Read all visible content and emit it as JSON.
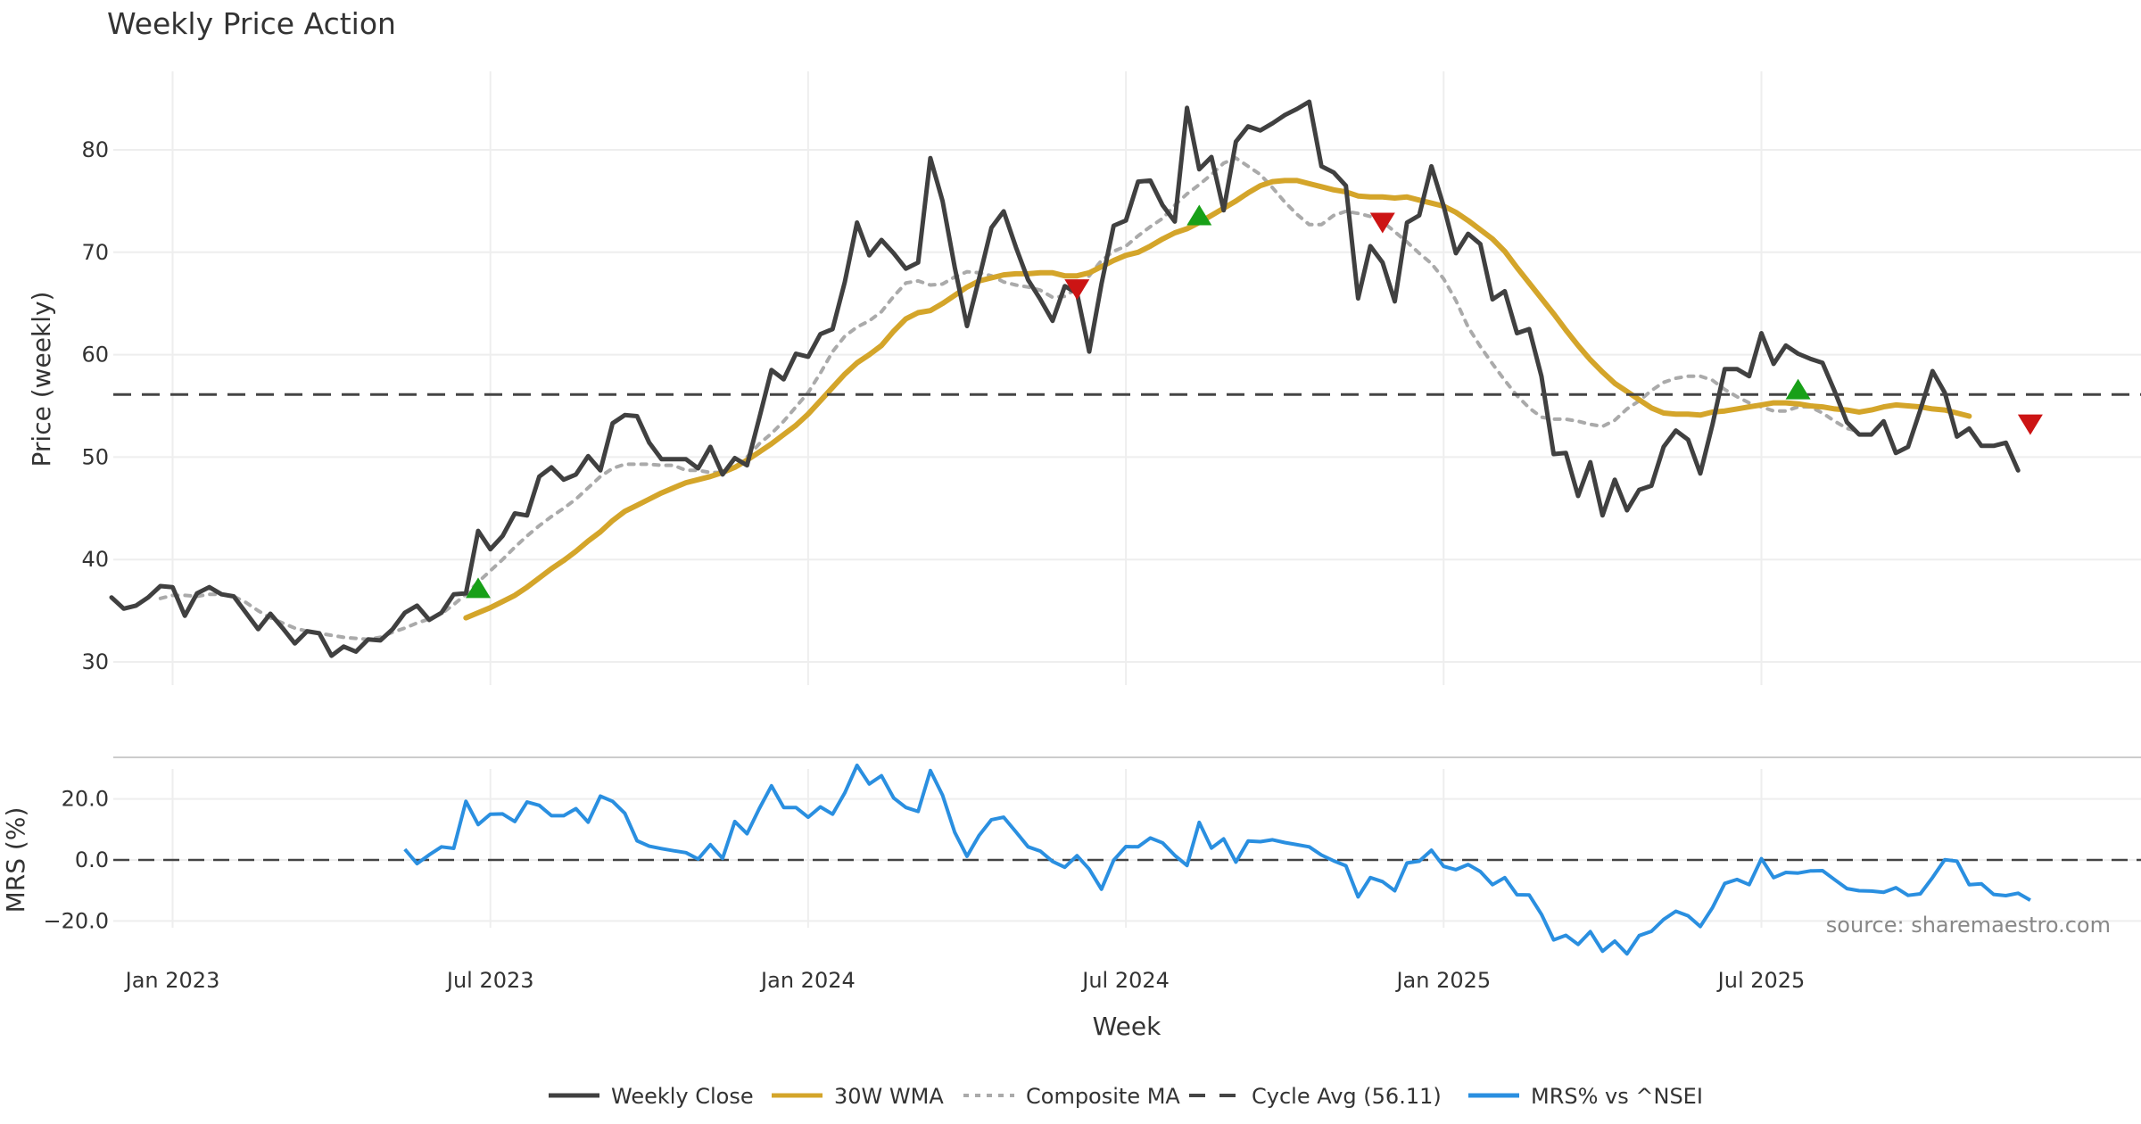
{
  "chart_data": {
    "type": "line",
    "title": "Weekly Price Action",
    "xlabel": "Week",
    "source": "source: sharemaestro.com",
    "x_ticks": [
      "Jan 2023",
      "Jul 2023",
      "Jan 2024",
      "Jul 2024",
      "Jan 2025",
      "Jul 2025"
    ],
    "x_tick_weeks": [
      5,
      31,
      57,
      83,
      109,
      135
    ],
    "weeks": 158,
    "price_panel": {
      "ylabel": "Price (weekly)",
      "ylim": [
        27,
        87
      ],
      "yticks": [
        30,
        40,
        50,
        60,
        70,
        80
      ],
      "cycle_avg": 56.11,
      "series": [
        {
          "name": "Weekly Close",
          "color": "#404040",
          "start": 0,
          "values": [
            36.3,
            35.2,
            35.5,
            36.3,
            37.4,
            37.3,
            34.5,
            36.7,
            37.3,
            36.6,
            36.4,
            34.8,
            33.2,
            34.7,
            33.3,
            31.8,
            33.0,
            32.8,
            30.6,
            31.5,
            31.0,
            32.2,
            32.1,
            33.2,
            34.8,
            35.5,
            34.1,
            34.8,
            36.6,
            36.7,
            42.8,
            41.0,
            42.3,
            44.5,
            44.3,
            48.1,
            49.0,
            47.8,
            48.3,
            50.1,
            48.7,
            53.3,
            54.1,
            54.0,
            51.4,
            49.8,
            49.8,
            49.8,
            48.9,
            51.0,
            48.3,
            49.9,
            49.2,
            53.8,
            58.5,
            57.6,
            60.1,
            59.8,
            62.0,
            62.5,
            67.1,
            72.9,
            69.7,
            71.2,
            69.9,
            68.4,
            69.0,
            79.2,
            75.0,
            68.5,
            62.8,
            67.5,
            72.4,
            74.0,
            70.5,
            67.3,
            65.4,
            63.3,
            66.7,
            66.0,
            60.3,
            66.9,
            72.6,
            73.1,
            76.9,
            77.0,
            74.6,
            73.0,
            84.1,
            78.1,
            79.3,
            74.1,
            80.8,
            82.3,
            81.9,
            82.6,
            83.4,
            84.0,
            84.7,
            78.4,
            77.8,
            76.5,
            65.5,
            70.6,
            69.0,
            65.2,
            72.9,
            73.6,
            78.4,
            74.5,
            69.9,
            71.8,
            70.8,
            65.4,
            66.2,
            62.1,
            62.5,
            57.9,
            50.3,
            50.4,
            46.2,
            49.5,
            44.3,
            47.8,
            44.8,
            46.8,
            47.2,
            51.0,
            52.6,
            51.7,
            48.4,
            53.2,
            58.6,
            58.6,
            57.9,
            62.1,
            59.1,
            60.9,
            60.1,
            59.6,
            59.2,
            56.4,
            53.4,
            52.2,
            52.2,
            53.5,
            50.4,
            51.0,
            54.6,
            58.4,
            56.3,
            52.0,
            52.8,
            51.1,
            51.1,
            51.4,
            48.7
          ]
        },
        {
          "name": "30W WMA",
          "color": "#d4a52a",
          "start": 29,
          "values": [
            34.3,
            34.8,
            35.3,
            35.9,
            36.5,
            37.3,
            38.2,
            39.1,
            39.9,
            40.8,
            41.8,
            42.7,
            43.8,
            44.7,
            45.3,
            45.9,
            46.5,
            47.0,
            47.5,
            47.8,
            48.1,
            48.5,
            49.0,
            49.7,
            50.5,
            51.3,
            52.2,
            53.1,
            54.2,
            55.5,
            56.8,
            58.1,
            59.2,
            60.0,
            60.9,
            62.3,
            63.5,
            64.1,
            64.3,
            65.0,
            65.8,
            66.6,
            67.2,
            67.5,
            67.8,
            67.9,
            67.9,
            68.0,
            68.0,
            67.7,
            67.7,
            68.0,
            68.6,
            69.2,
            69.7,
            70.0,
            70.6,
            71.3,
            71.9,
            72.3,
            72.9,
            73.6,
            74.3,
            75.0,
            75.8,
            76.5,
            76.9,
            77.0,
            77.0,
            76.7,
            76.4,
            76.1,
            75.9,
            75.5,
            75.4,
            75.4,
            75.3,
            75.4,
            75.1,
            74.8,
            74.5,
            73.9,
            73.1,
            72.2,
            71.3,
            70.1,
            68.5,
            67.0,
            65.5,
            64.0,
            62.4,
            60.9,
            59.5,
            58.3,
            57.2,
            56.4,
            55.6,
            54.8,
            54.3,
            54.2,
            54.2,
            54.1,
            54.4,
            54.5,
            54.7,
            54.9,
            55.1,
            55.3,
            55.3,
            55.2,
            55.0,
            54.9,
            54.7,
            54.6,
            54.4,
            54.6,
            54.9,
            55.1,
            55.0,
            54.9,
            54.7,
            54.6,
            54.3,
            54.0
          ]
        },
        {
          "name": "Composite MA",
          "color": "#aaaaaa",
          "start": 4,
          "values": [
            36.2,
            36.5,
            36.5,
            36.4,
            36.6,
            36.6,
            36.4,
            35.8,
            35.0,
            34.3,
            33.8,
            33.3,
            33.0,
            32.8,
            32.6,
            32.4,
            32.3,
            32.2,
            32.4,
            32.9,
            33.3,
            33.8,
            34.2,
            34.7,
            35.6,
            36.6,
            37.8,
            38.9,
            40.0,
            41.2,
            42.3,
            43.3,
            44.2,
            45.0,
            45.9,
            47.0,
            48.1,
            48.9,
            49.3,
            49.3,
            49.3,
            49.2,
            49.2,
            48.7,
            48.7,
            48.5,
            48.5,
            49.0,
            50.0,
            51.3,
            52.3,
            53.5,
            54.9,
            56.3,
            58.2,
            60.3,
            61.8,
            62.7,
            63.3,
            64.2,
            65.7,
            67.0,
            67.2,
            66.8,
            66.9,
            67.6,
            68.1,
            68.0,
            67.7,
            67.1,
            66.8,
            66.6,
            66.3,
            65.6,
            65.7,
            66.5,
            67.7,
            69.2,
            70.1,
            70.6,
            71.6,
            72.5,
            73.3,
            74.6,
            75.7,
            76.6,
            77.6,
            78.7,
            79.2,
            78.4,
            77.6,
            76.3,
            74.9,
            73.7,
            72.7,
            72.7,
            73.6,
            74.0,
            73.8,
            73.5,
            73.0,
            72.0,
            71.0,
            69.9,
            68.9,
            67.4,
            65.3,
            62.7,
            60.8,
            59.1,
            57.5,
            56.0,
            54.8,
            53.9,
            53.7,
            53.7,
            53.5,
            53.2,
            53.0,
            53.6,
            54.7,
            55.5,
            56.5,
            57.3,
            57.7,
            57.9,
            57.9,
            57.5,
            56.6,
            55.9,
            55.3,
            54.9,
            54.5,
            54.5,
            54.9,
            54.9,
            54.3,
            53.5,
            52.8,
            52.5
          ]
        }
      ],
      "buy_signals": [
        {
          "week": 30,
          "price": 37.2
        },
        {
          "week": 89,
          "price": 73.6
        },
        {
          "week": 138,
          "price": 56.6
        }
      ],
      "sell_signals": [
        {
          "week": 79,
          "price": 66.4
        },
        {
          "week": 104,
          "price": 72.9
        },
        {
          "week": 157,
          "price": 53.2
        }
      ]
    },
    "mrs_panel": {
      "ylabel": "MRS (%)",
      "ylim": [
        -30,
        30
      ],
      "yticks": [
        20.0,
        0.0,
        -20.0
      ],
      "ytick_labels": [
        "20.0",
        "0.0",
        "−20.0"
      ],
      "series": [
        {
          "name": "MRS% vs ^NSEI",
          "color": "#2a8fe0",
          "start": 24,
          "values": [
            3.5,
            -1.2,
            1.7,
            4.3,
            3.8,
            19.2,
            11.6,
            15.0,
            15.1,
            12.6,
            19.0,
            17.9,
            14.5,
            14.5,
            16.8,
            12.4,
            20.9,
            19.2,
            15.3,
            6.3,
            4.5,
            3.7,
            3.0,
            2.4,
            0.3,
            5.0,
            0.5,
            12.6,
            8.6,
            16.8,
            24.3,
            17.2,
            17.2,
            14.0,
            17.4,
            15.0,
            22.0,
            31.0,
            24.9,
            27.6,
            20.3,
            17.2,
            15.9,
            29.3,
            21.2,
            9.0,
            1.2,
            8.1,
            13.2,
            14.0,
            9.2,
            4.3,
            2.9,
            -0.5,
            -2.4,
            1.4,
            -3.0,
            -9.6,
            -0.1,
            4.4,
            4.3,
            7.2,
            5.6,
            1.5,
            -1.8,
            12.3,
            3.9,
            6.9,
            -0.7,
            6.2,
            6.0,
            6.6,
            5.7,
            5.0,
            4.3,
            1.6,
            -0.3,
            -1.9,
            -12.1,
            -5.8,
            -7.1,
            -10.1,
            -1.0,
            -0.4,
            3.2,
            -2.1,
            -3.2,
            -1.5,
            -3.8,
            -8.1,
            -5.8,
            -11.4,
            -11.5,
            -17.8,
            -26.2,
            -24.7,
            -27.7,
            -23.5,
            -29.9,
            -26.6,
            -30.8,
            -24.8,
            -23.4,
            -19.5,
            -16.8,
            -18.3,
            -21.8,
            -15.6,
            -7.7,
            -6.4,
            -8.1,
            0.4,
            -5.8,
            -4.1,
            -4.3,
            -3.6,
            -3.5,
            -6.5,
            -9.4,
            -10.1,
            -10.2,
            -10.6,
            -9.1,
            -11.6,
            -11.1,
            -5.8,
            0.1,
            -0.4,
            -8.1,
            -7.8,
            -11.3,
            -11.7,
            -10.9,
            -13.2
          ]
        }
      ]
    },
    "legend": [
      {
        "label": "Weekly Close",
        "color": "#404040",
        "style": "solid"
      },
      {
        "label": "30W WMA",
        "color": "#d4a52a",
        "style": "solid"
      },
      {
        "label": "Composite MA",
        "color": "#aaaaaa",
        "style": "dotted"
      },
      {
        "label": "Cycle Avg (56.11)",
        "color": "#444444",
        "style": "dashed"
      },
      {
        "label": "MRS% vs ^NSEI",
        "color": "#2a8fe0",
        "style": "solid"
      }
    ]
  }
}
